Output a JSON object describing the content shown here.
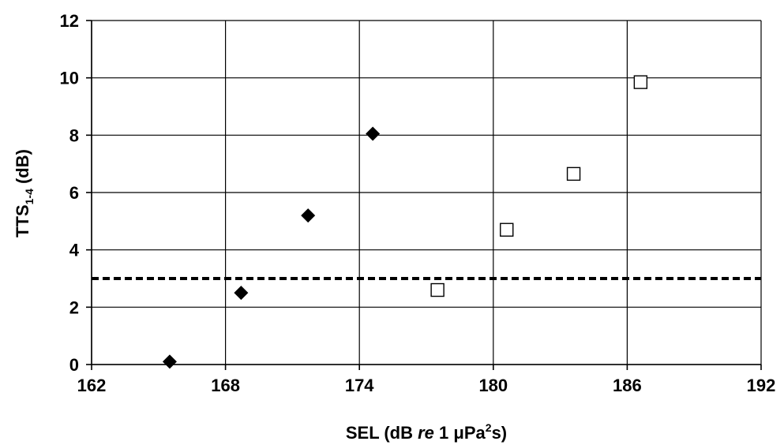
{
  "chart_data": {
    "type": "scatter",
    "title": "",
    "xlabel": {
      "prefix": "SEL (dB ",
      "italic": "re",
      "middle": " 1 μPa",
      "sup": "2",
      "suffix": "s)"
    },
    "ylabel": {
      "prefix": "TTS",
      "sub": "1-4",
      "suffix": " (dB)"
    },
    "xlim": [
      162,
      192
    ],
    "ylim": [
      0,
      12
    ],
    "xticks": [
      162,
      168,
      174,
      180,
      186,
      192
    ],
    "yticks": [
      0,
      2,
      4,
      6,
      8,
      10,
      12
    ],
    "grid": true,
    "reference_line": {
      "y": 3,
      "style": "dashed"
    },
    "series": [
      {
        "marker": "diamond-filled",
        "color": "#000000",
        "points": [
          {
            "x": 165.5,
            "y": 0.1
          },
          {
            "x": 168.7,
            "y": 2.5
          },
          {
            "x": 171.7,
            "y": 5.2
          },
          {
            "x": 174.6,
            "y": 8.05
          }
        ]
      },
      {
        "marker": "square-open",
        "color": "#000000",
        "points": [
          {
            "x": 177.5,
            "y": 2.6
          },
          {
            "x": 180.6,
            "y": 4.7
          },
          {
            "x": 183.6,
            "y": 6.65
          },
          {
            "x": 186.6,
            "y": 9.85
          }
        ]
      }
    ]
  }
}
